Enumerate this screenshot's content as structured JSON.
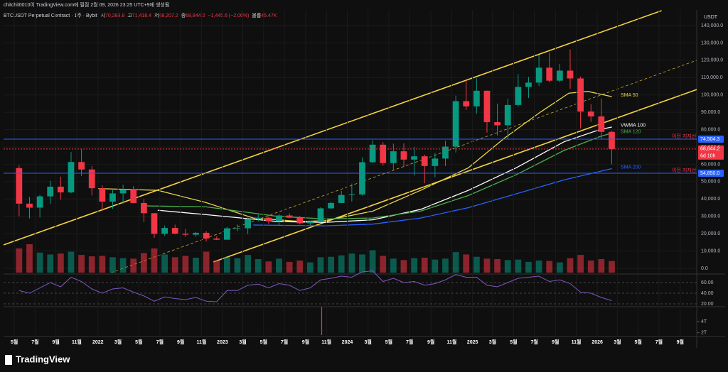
{
  "header": {
    "creator": "chitchit0010이 TradingView.com에 필짐 2월 09, 2026 23:25 UTC+9에 생성됨"
  },
  "footer": {
    "brand": "TradingView"
  },
  "chart_data": {
    "type": "candlestick",
    "symbol": "BTCUSDT Perpetual Contract · 1주 · Bybit",
    "legend_items": [
      {
        "label": "시",
        "value": "70,289.8"
      },
      {
        "label": "고",
        "value": "71,418.4"
      },
      {
        "label": "저",
        "value": "68,207.2"
      },
      {
        "label": "종",
        "value": "68,844.2"
      },
      {
        "label": "",
        "value": "−1,445.6 (−2.06%)"
      },
      {
        "label": "볼륨",
        "value": "45.47K"
      }
    ],
    "currency": "USDT",
    "up_color": "#089981",
    "down_color": "#f23645",
    "xlim": [
      -4.5,
      285.5
    ],
    "xticks": [
      {
        "value": 0,
        "label": "5월"
      },
      {
        "value": 8.7,
        "label": "7월"
      },
      {
        "value": 17.4,
        "label": "9월"
      },
      {
        "value": 26.1,
        "label": "11월"
      },
      {
        "value": 35,
        "label": "2022"
      },
      {
        "value": 43.4,
        "label": "3월"
      },
      {
        "value": 52.1,
        "label": "5월"
      },
      {
        "value": 60.9,
        "label": "7월"
      },
      {
        "value": 69.6,
        "label": "9월"
      },
      {
        "value": 78.3,
        "label": "11월"
      },
      {
        "value": 87.1,
        "label": "2023"
      },
      {
        "value": 95.6,
        "label": "3월"
      },
      {
        "value": 104.3,
        "label": "5월"
      },
      {
        "value": 113,
        "label": "7월"
      },
      {
        "value": 121.9,
        "label": "9월"
      },
      {
        "value": 130.6,
        "label": "11월"
      },
      {
        "value": 139.3,
        "label": "2024"
      },
      {
        "value": 148,
        "label": "3월"
      },
      {
        "value": 156.7,
        "label": "5월"
      },
      {
        "value": 165.4,
        "label": "7월"
      },
      {
        "value": 174.3,
        "label": "9월"
      },
      {
        "value": 183,
        "label": "11월"
      },
      {
        "value": 191.7,
        "label": "2025"
      },
      {
        "value": 200.1,
        "label": "3월"
      },
      {
        "value": 208.9,
        "label": "5월"
      },
      {
        "value": 217.6,
        "label": "7월"
      },
      {
        "value": 226.4,
        "label": "9월"
      },
      {
        "value": 235.1,
        "label": "11월"
      },
      {
        "value": 243.9,
        "label": "2026"
      },
      {
        "value": 252.3,
        "label": "3월"
      },
      {
        "value": 261,
        "label": "5월"
      },
      {
        "value": 269.7,
        "label": "7월"
      },
      {
        "value": 278.6,
        "label": "9월"
      }
    ],
    "ylim": [
      -2456,
      149000
    ],
    "yticks": [
      {
        "value": 0,
        "label": "0.0"
      },
      {
        "value": 10000,
        "label": "10,000.0"
      },
      {
        "value": 20000,
        "label": "20,000.0"
      },
      {
        "value": 30000,
        "label": "30,000.0"
      },
      {
        "value": 40000,
        "label": "40,000.0"
      },
      {
        "value": 50000,
        "label": "50,000.0"
      },
      {
        "value": 60000,
        "label": "60,000.0"
      },
      {
        "value": 70000,
        "label": "70,000.0"
      },
      {
        "value": 80000,
        "label": "80,000.0"
      },
      {
        "value": 90000,
        "label": "90,000.0"
      },
      {
        "value": 100000,
        "label": "100,000.0"
      },
      {
        "value": 110000,
        "label": "110,000.0"
      },
      {
        "value": 120000,
        "label": "120,000.0"
      },
      {
        "value": 130000,
        "label": "130,000.0"
      },
      {
        "value": 140000,
        "label": "140,000.0"
      }
    ],
    "x": [
      2,
      6.35,
      10.7,
      15.05,
      19.4,
      23.75,
      28.1,
      32.45,
      36.8,
      41.15,
      45.5,
      49.85,
      54.2,
      58.55,
      62.9,
      67.25,
      71.6,
      75.95,
      80.3,
      84.65,
      89,
      93.35,
      97.7,
      102.05,
      106.4,
      110.75,
      115.1,
      119.45,
      123.8,
      128.15,
      132.5,
      136.85,
      141.2,
      145.55,
      149.9,
      154.25,
      158.6,
      162.95,
      167.3,
      171.65,
      176,
      180.35,
      184.7,
      189.05,
      193.4,
      197.75,
      202.1,
      206.45,
      210.8,
      215.15,
      219.5,
      223.85,
      228.2,
      232.55,
      236.9,
      241.25,
      245.6,
      249.95
    ],
    "open": [
      57800,
      37300,
      35000,
      41500,
      47100,
      43800,
      61300,
      57000,
      46200,
      38500,
      43200,
      45500,
      37700,
      31800,
      19900,
      23300,
      20000,
      19400,
      20500,
      17200,
      16500,
      23100,
      23100,
      28500,
      29200,
      27200,
      30500,
      29200,
      26000,
      27000,
      34600,
      37700,
      42300,
      42600,
      61200,
      71300,
      60700,
      67500,
      62700,
      64600,
      59000,
      63300,
      70200,
      96400,
      93400,
      102400,
      84300,
      82500,
      94200,
      104600,
      107100,
      115700,
      108200,
      114000,
      109500,
      90400,
      87600,
      78700
    ],
    "high": [
      59500,
      41300,
      42400,
      50500,
      52900,
      67000,
      69000,
      59000,
      47900,
      45800,
      48200,
      47400,
      40000,
      31900,
      24700,
      25200,
      22800,
      21000,
      21500,
      18400,
      23900,
      25300,
      29200,
      31000,
      29800,
      31400,
      31800,
      30200,
      27500,
      35200,
      38400,
      44700,
      48900,
      64000,
      73800,
      72800,
      71900,
      72000,
      70000,
      65600,
      66500,
      73600,
      99600,
      108300,
      109600,
      102500,
      95000,
      97900,
      111900,
      110400,
      123200,
      124500,
      117900,
      126200,
      110600,
      94600,
      97900,
      79300
    ],
    "low": [
      30000,
      28800,
      29300,
      37300,
      39600,
      43300,
      53300,
      42000,
      33000,
      34300,
      37200,
      37600,
      26700,
      17600,
      18800,
      19600,
      18200,
      18200,
      15500,
      16300,
      16500,
      21400,
      19600,
      26900,
      25800,
      24800,
      28900,
      25300,
      24900,
      26600,
      34100,
      37600,
      38500,
      41900,
      60800,
      59200,
      56600,
      58400,
      53500,
      49000,
      52600,
      58900,
      66800,
      91300,
      89200,
      78200,
      76600,
      74500,
      93400,
      98200,
      105100,
      107300,
      107300,
      103500,
      80600,
      84400,
      74500,
      60000
    ],
    "close": [
      37300,
      35000,
      41500,
      47100,
      43800,
      61300,
      57000,
      46200,
      38500,
      43200,
      45500,
      37700,
      31800,
      19900,
      23300,
      20000,
      19400,
      20500,
      17200,
      16500,
      23100,
      23100,
      28500,
      29200,
      27200,
      30500,
      29200,
      26000,
      27000,
      34600,
      37700,
      42300,
      42600,
      61200,
      71300,
      60700,
      67500,
      62700,
      64600,
      59000,
      63300,
      70200,
      96400,
      93400,
      102400,
      84300,
      82500,
      94200,
      104600,
      107100,
      115700,
      108200,
      114000,
      109500,
      90400,
      87600,
      78700,
      68844.2
    ],
    "volume": [
      5200,
      6100,
      4300,
      3900,
      4100,
      4500,
      3800,
      3500,
      3600,
      3300,
      3100,
      3000,
      4200,
      5200,
      3900,
      3300,
      3600,
      3200,
      4500,
      2600,
      3300,
      3100,
      3800,
      2900,
      2400,
      3000,
      2300,
      2600,
      2200,
      3300,
      3400,
      3700,
      4100,
      3900,
      4800,
      3600,
      3000,
      2700,
      3100,
      3200,
      2800,
      3000,
      4400,
      3900,
      3400,
      3000,
      2900,
      2700,
      2800,
      2300,
      2600,
      2500,
      2200,
      3100,
      3800,
      2600,
      2900,
      2500
    ],
    "channel": [
      {
        "color": "#f5d142",
        "style": "solid",
        "x": [
          -4.5,
          270.8
        ],
        "values": [
          13500,
          148600
        ]
      },
      {
        "color": "#c9a92c",
        "style": "dashed",
        "x": [
          -4.5,
          285.5
        ],
        "values": [
          -25000,
          120000
        ]
      },
      {
        "color": "#f5d142",
        "style": "solid",
        "x": [
          83.3,
          285.7
        ],
        "values": [
          3700,
          103200
        ]
      }
    ],
    "series": [
      {
        "name": "SMA 50",
        "color": "#e8d44d",
        "x": [
          35,
          60,
          80,
          100,
          120,
          130,
          150,
          170,
          190,
          205,
          220,
          232,
          240,
          250
        ],
        "values": [
          46000,
          45000,
          38000,
          29000,
          27000,
          27500,
          33000,
          45000,
          58000,
          75000,
          90000,
          101000,
          102000,
          99000
        ]
      },
      {
        "name": "VWMA 100",
        "color": "#ffffff",
        "x": [
          60,
          80,
          110,
          130,
          150,
          170,
          190,
          210,
          230,
          245,
          250
        ],
        "values": [
          33500,
          31000,
          27000,
          26500,
          28000,
          34000,
          45000,
          58000,
          73000,
          80000,
          81500
        ]
      },
      {
        "name": "SMA 120",
        "color": "#4caf50",
        "x": [
          55,
          80,
          110,
          130,
          150,
          170,
          190,
          210,
          230,
          245,
          250
        ],
        "values": [
          36000,
          35500,
          30000,
          28500,
          29000,
          33000,
          42000,
          54000,
          68000,
          76000,
          78000
        ]
      },
      {
        "name": "SMA 200",
        "color": "#2962ff",
        "x": [
          100,
          130,
          150,
          170,
          190,
          210,
          230,
          250
        ],
        "values": [
          25000,
          24500,
          25500,
          29000,
          35000,
          43000,
          51000,
          57500
        ]
      }
    ],
    "hlines": [
      {
        "value": 74504.3,
        "label": "74,504.3",
        "color": "#2962ff",
        "note": "이전 지지선"
      },
      {
        "value": 54850,
        "label": "54,850.0",
        "color": "#2962ff",
        "note": "이전 지지선"
      },
      {
        "value": 68844.2,
        "label": "68,844.2",
        "color": "#f23645",
        "countdown": "6d 10h"
      }
    ],
    "rsi": {
      "color": "#7e57c2",
      "ylim": [
        14.7,
        76
      ],
      "yticks": [
        {
          "value": 60,
          "label": "60.00"
        },
        {
          "value": 40,
          "label": "40.00"
        },
        {
          "value": 20,
          "label": "20.00"
        }
      ],
      "values": [
        45,
        40,
        50,
        60,
        52,
        70,
        62,
        48,
        40,
        48,
        50,
        42,
        35,
        25,
        33,
        30,
        28,
        32,
        25,
        24,
        45,
        45,
        55,
        57,
        50,
        58,
        55,
        45,
        50,
        65,
        68,
        72,
        70,
        80,
        82,
        62,
        68,
        60,
        62,
        55,
        58,
        65,
        75,
        70,
        70,
        55,
        52,
        60,
        68,
        70,
        72,
        62,
        65,
        58,
        42,
        40,
        32,
        26
      ]
    },
    "indicator": {
      "color": "#f23645",
      "ylim": [
        1.33,
        6.67
      ],
      "yticks": [
        {
          "value": 4,
          "label": "4T"
        },
        {
          "value": 2,
          "label": "2T"
        }
      ],
      "x": [
        128.6
      ],
      "values": [
        6.6
      ]
    }
  }
}
